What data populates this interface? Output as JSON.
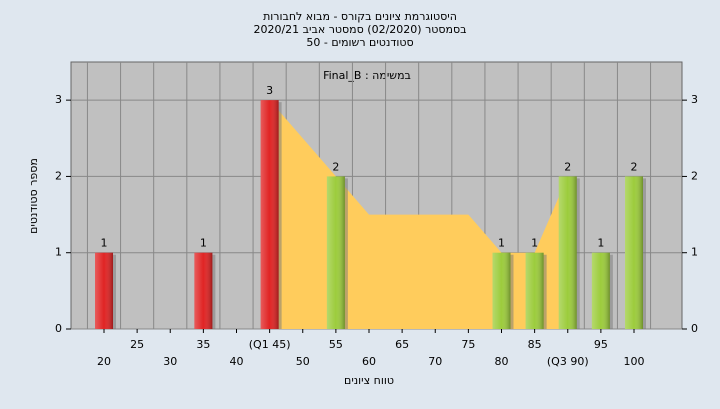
{
  "chart_data": {
    "type": "bar",
    "title": "היסטוגרמת ציונים בקורס - מבוא לחבורות",
    "subtitle": "בסמסטר (02/2020) סמסטר אביב 2020/21",
    "subtitle2": "סטודנטים רשומים - 50",
    "annotation": "Final_B : במשימה",
    "x_label": "טווח ציונים",
    "y_label": "מספר סטודנטים",
    "categories": [
      "20",
      "25",
      "30",
      "35",
      "40",
      "(Q1 45)",
      "50",
      "55",
      "60",
      "65",
      "70",
      "75",
      "80",
      "85",
      "(Q3 90)",
      "95",
      "100"
    ],
    "series": [
      {
        "values": [
          1,
          0,
          0,
          1,
          0,
          3,
          0,
          2,
          0,
          0,
          0,
          0,
          1,
          1,
          2,
          1,
          2
        ],
        "colors": [
          "#e02424",
          "#e02424",
          "#e02424",
          "#e02424",
          "#e02424",
          "#e02424",
          "#9ccc3c",
          "#9ccc3c",
          "#9ccc3c",
          "#9ccc3c",
          "#9ccc3c",
          "#9ccc3c",
          "#9ccc3c",
          "#9ccc3c",
          "#9ccc3c",
          "#9ccc3c",
          "#9ccc3c"
        ]
      }
    ],
    "area": {
      "color": "#ffcc5c",
      "values": [
        null,
        null,
        null,
        null,
        null,
        3,
        2.5,
        2,
        1.5,
        1.5,
        1.5,
        1.5,
        1,
        1,
        2,
        null,
        null
      ]
    },
    "ylim": [
      0,
      3.5
    ],
    "yticks": [
      0,
      1,
      2,
      3
    ],
    "grid": true
  }
}
